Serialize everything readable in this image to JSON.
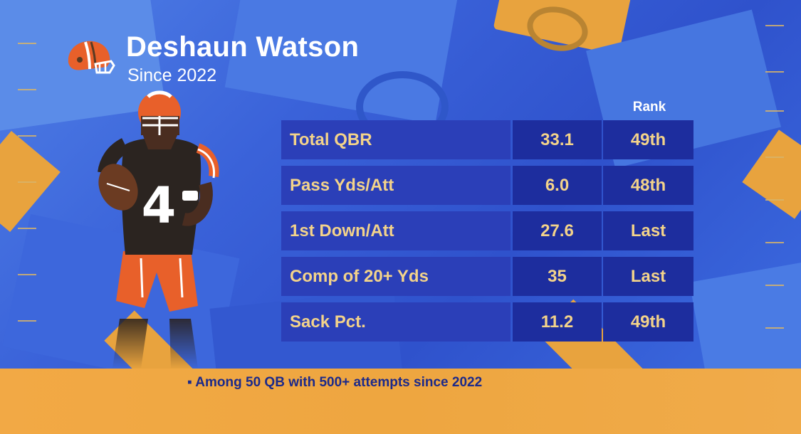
{
  "header": {
    "team_logo_icon": "browns-helmet-icon",
    "player_name": "Deshaun Watson",
    "subtitle": "Since 2022"
  },
  "table": {
    "rank_header": "Rank",
    "rows": [
      {
        "label": "Total QBR",
        "value": "33.1",
        "rank": "49th"
      },
      {
        "label": "Pass Yds/Att",
        "value": "6.0",
        "rank": "48th"
      },
      {
        "label": "1st Down/Att",
        "value": "27.6",
        "rank": "Last"
      },
      {
        "label": "Comp of 20+ Yds",
        "value": "35",
        "rank": "Last"
      },
      {
        "label": "Sack Pct.",
        "value": "11.2",
        "rank": "49th"
      }
    ]
  },
  "player_image": {
    "jersey_number": "4"
  },
  "footer": {
    "note": "▪ Among 50 QB with 500+ attempts since 2022"
  },
  "colors": {
    "accent_gold": "#f3d38a",
    "footer_orange": "#f2a945",
    "table_blue": "#2b3fb8",
    "browns_orange": "#e8602a"
  }
}
